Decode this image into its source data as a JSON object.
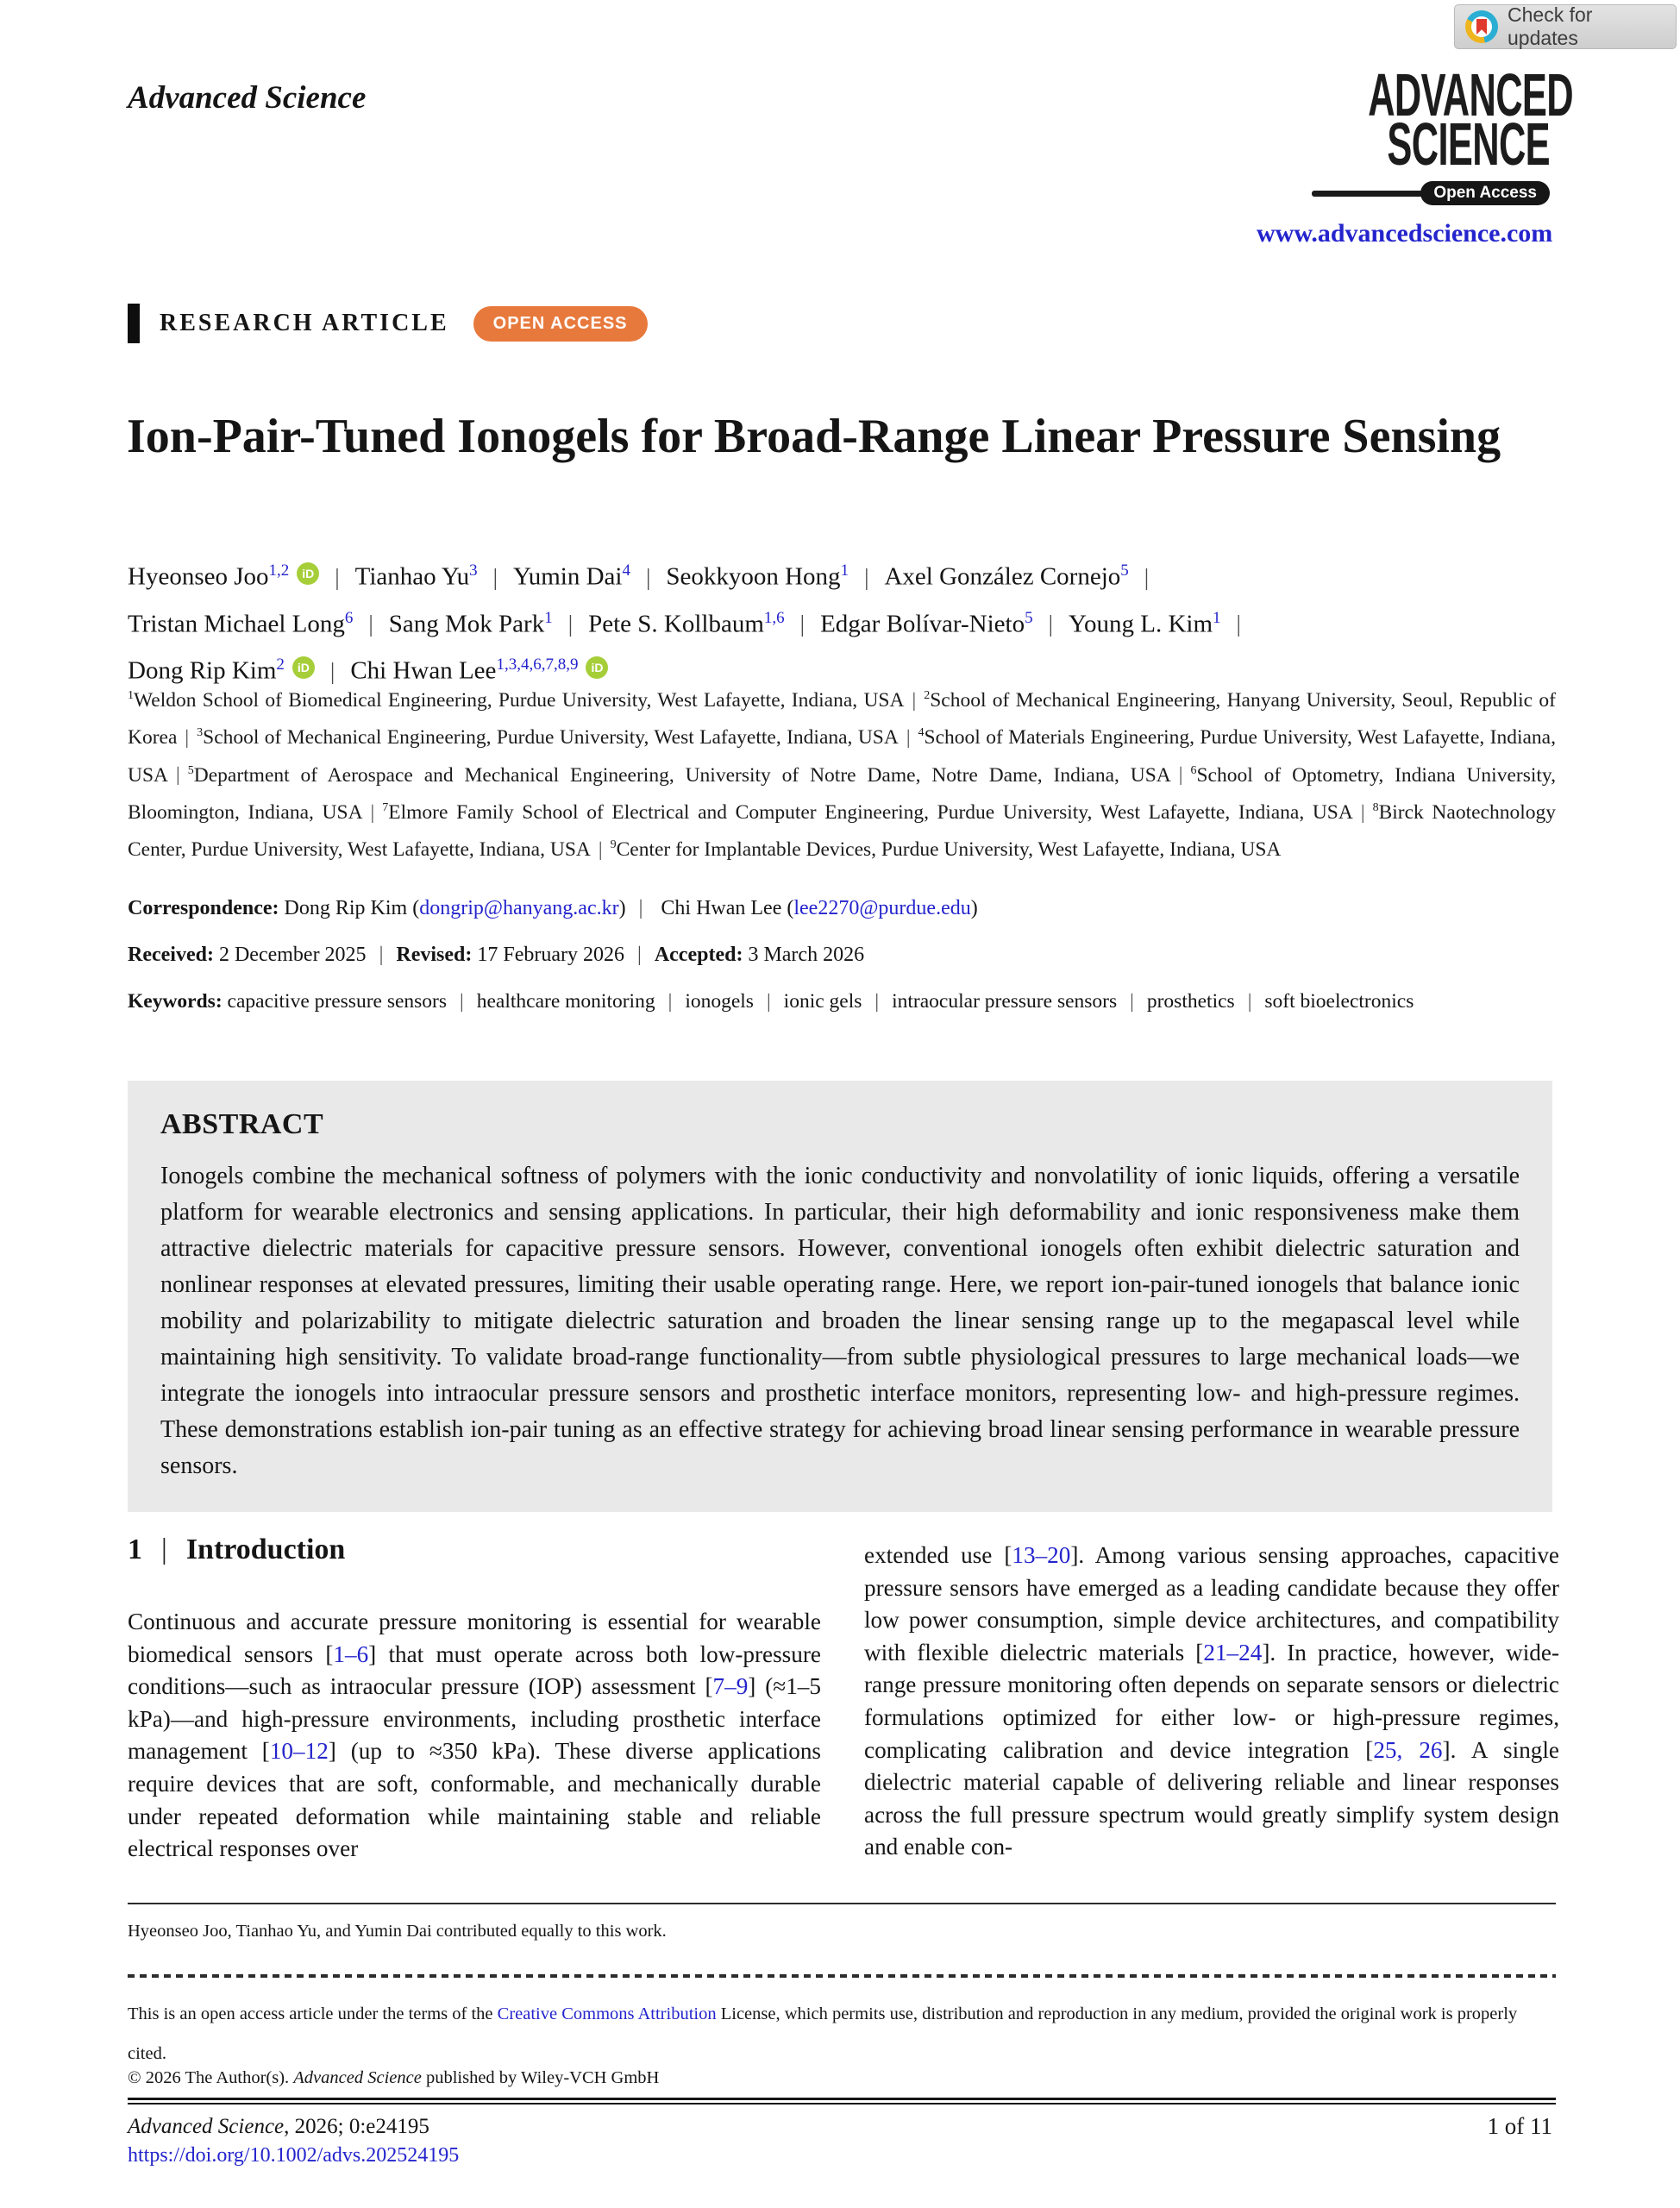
{
  "header": {
    "journal_name": "Advanced Science",
    "check_for_updates": "Check for updates",
    "logo_line1": "ADVANCED",
    "logo_line2": "SCIENCE",
    "logo_badge": "Open Access",
    "logo_url": "www.advancedscience.com"
  },
  "article": {
    "type_label": "RESEARCH ARTICLE",
    "access_badge": "OPEN ACCESS",
    "title": "Ion-Pair-Tuned Ionogels for Broad-Range Linear Pressure Sensing"
  },
  "authors": {
    "separator": "|",
    "rows": [
      {
        "trailing_separator": true,
        "items": [
          {
            "name": "Hyeonseo Joo",
            "sup": "1,2",
            "orcid": true
          },
          {
            "name": "Tianhao Yu",
            "sup": "3",
            "orcid": false
          },
          {
            "name": "Yumin Dai",
            "sup": "4",
            "orcid": false
          },
          {
            "name": "Seokkyoon Hong",
            "sup": "1",
            "orcid": false
          },
          {
            "name": "Axel González Cornejo",
            "sup": "5",
            "orcid": false
          }
        ]
      },
      {
        "trailing_separator": true,
        "items": [
          {
            "name": "Tristan Michael Long",
            "sup": "6",
            "orcid": false
          },
          {
            "name": "Sang Mok Park",
            "sup": "1",
            "orcid": false
          },
          {
            "name": "Pete S. Kollbaum",
            "sup": "1,6",
            "orcid": false
          },
          {
            "name": "Edgar Bolívar-Nieto",
            "sup": "5",
            "orcid": false
          },
          {
            "name": "Young L. Kim",
            "sup": "1",
            "orcid": false
          }
        ]
      },
      {
        "trailing_separator": false,
        "items": [
          {
            "name": "Dong Rip Kim",
            "sup": "2",
            "orcid": true
          },
          {
            "name": "Chi Hwan Lee",
            "sup": "1,3,4,6,7,8,9",
            "orcid": true
          }
        ]
      }
    ]
  },
  "affiliations": {
    "separator": "|",
    "items": [
      {
        "sup": "1",
        "text": "Weldon School of Biomedical Engineering, Purdue University, West Lafayette, Indiana, USA"
      },
      {
        "sup": "2",
        "text": "School of Mechanical Engineering, Hanyang University, Seoul, Republic of Korea"
      },
      {
        "sup": "3",
        "text": "School of Mechanical Engineering, Purdue University, West Lafayette, Indiana, USA"
      },
      {
        "sup": "4",
        "text": "School of Materials Engineering, Purdue University, West Lafayette, Indiana, USA"
      },
      {
        "sup": "5",
        "text": "Department of Aerospace and Mechanical Engineering, University of Notre Dame, Notre Dame, Indiana, USA"
      },
      {
        "sup": "6",
        "text": "School of Optometry, Indiana University, Bloomington, Indiana, USA"
      },
      {
        "sup": "7",
        "text": "Elmore Family School of Electrical and Computer Engineering, Purdue University, West Lafayette, Indiana, USA"
      },
      {
        "sup": "8",
        "text": "Birck Naotechnology Center, Purdue University, West Lafayette, Indiana, USA"
      },
      {
        "sup": "9",
        "text": "Center for Implantable Devices, Purdue University, West Lafayette, Indiana, USA"
      }
    ]
  },
  "correspondence": {
    "label": "Correspondence:",
    "separator": "|",
    "contacts": [
      {
        "name": "Dong Rip Kim",
        "email": "dongrip@hanyang.ac.kr"
      },
      {
        "name": "Chi Hwan Lee",
        "email": "lee2270@purdue.edu"
      }
    ]
  },
  "history": {
    "separator": "|",
    "items": [
      {
        "label": "Received:",
        "value": "2 December 2025"
      },
      {
        "label": "Revised:",
        "value": "17 February 2026"
      },
      {
        "label": "Accepted:",
        "value": "3 March 2026"
      }
    ]
  },
  "keywords": {
    "label": "Keywords:",
    "separator": "|",
    "items": [
      "capacitive pressure sensors",
      "healthcare monitoring",
      "ionogels",
      "ionic gels",
      "intraocular pressure sensors",
      "prosthetics",
      "soft bioelectronics"
    ]
  },
  "abstract": {
    "heading": "ABSTRACT",
    "text": "Ionogels combine the mechanical softness of polymers with the ionic conductivity and nonvolatility of ionic liquids, offering a versatile platform for wearable electronics and sensing applications. In particular, their high deformability and ionic responsiveness make them attractive dielectric materials for capacitive pressure sensors. However, conventional ionogels often exhibit dielectric saturation and nonlinear responses at elevated pressures, limiting their usable operating range. Here, we report ion-pair-tuned ionogels that balance ionic mobility and polarizability to mitigate dielectric saturation and broaden the linear sensing range up to the megapascal level while maintaining high sensitivity. To validate broad-range functionality—from subtle physiological pressures to large mechanical loads—we integrate the ionogels into intraocular pressure sensors and prosthetic interface monitors, representing low- and high-pressure regimes. These demonstrations establish ion-pair tuning as an effective strategy for achieving broad linear sensing performance in wearable pressure sensors."
  },
  "introduction": {
    "number": "1",
    "separator": "|",
    "title": "Introduction",
    "col_left": "Continuous and accurate pressure monitoring is essential for wearable biomedical sensors [1–6] that must operate across both low-pressure conditions—such as intraocular pressure (IOP) assessment [7–9] (≈1–5 kPa)—and high-pressure environments, including prosthetic interface management [10–12] (up to ≈350 kPa). These diverse applications require devices that are soft, conformable, and mechanically durable under repeated deformation while maintaining stable and reliable electrical responses over",
    "col_right": "extended use [13–20]. Among various sensing approaches, capacitive pressure sensors have emerged as a leading candidate because they offer low power consumption, simple device architectures, and compatibility with flexible dielectric materials [21–24]. In practice, however, wide-range pressure monitoring often depends on separate sensors or dielectric formulations optimized for either low- or high-pressure regimes, complicating calibration and device integration [25, 26]. A single dielectric material capable of delivering reliable and linear responses across the full pressure spectrum would greatly simplify system design and enable con-"
  },
  "footnotes": {
    "equal_contribution": "Hyeonseo Joo, Tianhao Yu, and Yumin Dai contributed equally to this work.",
    "license_prefix": "This is an open access article under the terms of the ",
    "license_link": "Creative Commons Attribution",
    "license_suffix": " License, which permits use, distribution and reproduction in any medium, provided the original work is properly cited.",
    "copyright_prefix": "© 2026 The Author(s). ",
    "copyright_journal": "Advanced Science",
    "copyright_suffix": " published by Wiley-VCH GmbH"
  },
  "footer": {
    "journal_italic": "Advanced Science",
    "citation_rest": ", 2026; 0:e24195",
    "doi": "https://doi.org/10.1002/advs.202524195",
    "page_indicator": "1 of 11"
  },
  "colors": {
    "link_blue": "#2424CD",
    "open_access_orange": "#E8793C",
    "orcid_green": "#A6CE39",
    "abstract_background": "#E9E9E9",
    "crossmark_cyan": "#2AAED3",
    "crossmark_yellow": "#EEB51E",
    "crossmark_red": "#E03A2F"
  }
}
